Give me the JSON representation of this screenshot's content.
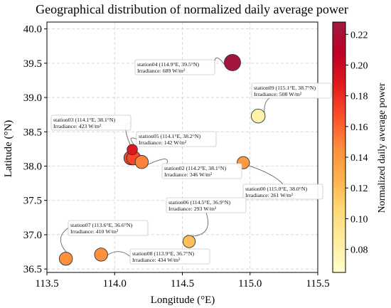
{
  "chart_data": {
    "type": "scatter",
    "title": "Geographical distribution of normalized daily average power",
    "xlabel": "Longitude (°E)",
    "ylabel": "Latitude (°N)",
    "xlim": [
      113.5,
      115.5
    ],
    "ylim": [
      36.45,
      40.1
    ],
    "x_ticks": [
      113.5,
      114.0,
      114.5,
      115.0,
      115.5
    ],
    "x_tick_labels": [
      "113.5",
      "114.0",
      "114.5",
      "115.0",
      "115.5"
    ],
    "y_ticks": [
      36.5,
      37.0,
      37.5,
      38.0,
      38.5,
      39.0,
      39.5,
      40.0
    ],
    "y_tick_labels": [
      "36.5",
      "37.0",
      "37.5",
      "38.0",
      "38.5",
      "39.0",
      "39.5",
      "40.0"
    ],
    "grid": true,
    "colorbar": {
      "label": "Normalized daily average power",
      "min": 0.065,
      "max": 0.228,
      "ticks": [
        0.08,
        0.1,
        0.12,
        0.14,
        0.16,
        0.18,
        0.2,
        0.22
      ],
      "tick_labels": [
        "0.08",
        "0.10",
        "0.12",
        "0.14",
        "0.16",
        "0.18",
        "0.20",
        "0.22"
      ],
      "colormap": "YlOrRd",
      "stops": [
        "#ffffcc",
        "#ffeda0",
        "#fed976",
        "#feb24c",
        "#fd8d3c",
        "#fc4e2a",
        "#e31a1c",
        "#bd0026",
        "#a01a40"
      ]
    },
    "points": [
      {
        "name": "station00",
        "lon": 114.95,
        "lat": 38.05,
        "value": 0.14,
        "size": 0.8,
        "label1": "station00 (115.0°E, 38.0°N)",
        "label2": "Irradiance: 261 W/m²",
        "anchor": "below-right"
      },
      {
        "name": "station01",
        "lon": 114.12,
        "lat": 38.12,
        "value": 0.17,
        "size": 1.0,
        "label1": "",
        "label2": "",
        "anchor": "none"
      },
      {
        "name": "station02",
        "lon": 114.2,
        "lat": 38.06,
        "value": 0.15,
        "size": 0.9,
        "label1": "station02 (114.2°E, 38.1°N)",
        "label2": "Irradiance: 346 W/m²",
        "anchor": "below-right"
      },
      {
        "name": "station03",
        "lon": 114.14,
        "lat": 38.12,
        "value": 0.17,
        "size": 1.0,
        "label1": "station03 (114.1°E, 38.1°N)",
        "label2": "Irradiance: 423 W/m²",
        "anchor": "above-left"
      },
      {
        "name": "station04",
        "lon": 114.87,
        "lat": 39.51,
        "value": 0.225,
        "size": 1.3,
        "label1": "station04 (114.9°E, 39.5°N)",
        "label2": "Irradiance: 689 W/m²",
        "anchor": "left"
      },
      {
        "name": "station05",
        "lon": 114.13,
        "lat": 38.24,
        "value": 0.19,
        "size": 0.55,
        "label1": "station05 (114.1°E, 38.2°N)",
        "label2": "Irradiance: 142 W/m²",
        "anchor": "right"
      },
      {
        "name": "station06",
        "lon": 114.55,
        "lat": 36.9,
        "value": 0.12,
        "size": 0.8,
        "label1": "station06 (114.5°E, 36.9°N)",
        "label2": "Irradiance: 293 W/m²",
        "anchor": "above-left"
      },
      {
        "name": "station07",
        "lon": 113.64,
        "lat": 36.65,
        "value": 0.145,
        "size": 0.9,
        "label1": "station07 (113.6°E, 36.6°N)",
        "label2": "Irradiance: 410 W/m²",
        "anchor": "above-right"
      },
      {
        "name": "station08",
        "lon": 113.9,
        "lat": 36.71,
        "value": 0.145,
        "size": 0.9,
        "label1": "station08 (113.9°E, 36.7°N)",
        "label2": "Irradiance: 434 W/m²",
        "anchor": "below-right"
      },
      {
        "name": "station09",
        "lon": 115.06,
        "lat": 38.73,
        "value": 0.08,
        "size": 1.0,
        "label1": "station09 (115.1°E, 38.7°N)",
        "label2": "Irradiance: 508 W/m²",
        "anchor": "above-right"
      }
    ]
  }
}
